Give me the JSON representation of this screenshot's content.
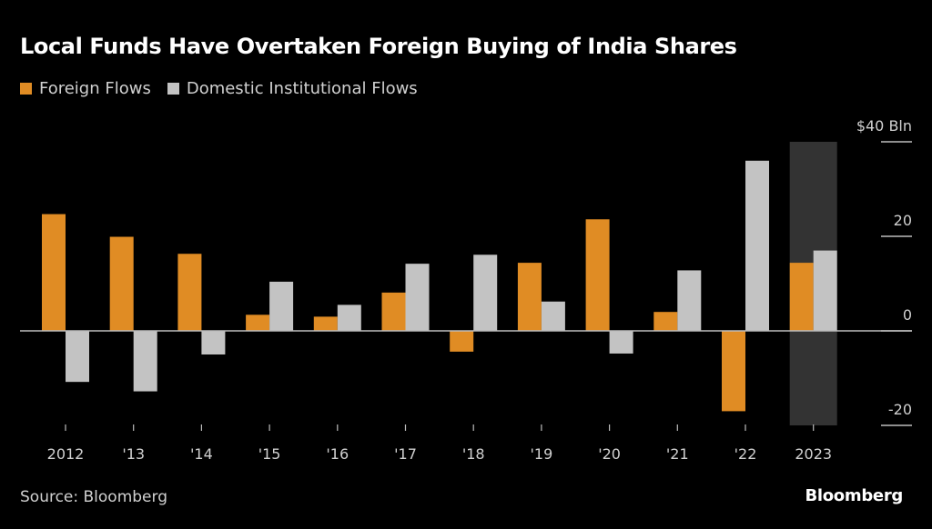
{
  "title": "Local Funds Have Overtaken Foreign Buying of India Shares",
  "source": "Source: Bloomberg",
  "brand": "Bloomberg",
  "colors": {
    "foreign": "#e08c24",
    "domestic": "#c3c3c3",
    "highlight": "#333333",
    "axis": "#bdbdbd",
    "background": "#000000"
  },
  "legend": [
    {
      "label": "Foreign Flows",
      "color": "#e08c24"
    },
    {
      "label": "Domestic Institutional Flows",
      "color": "#c3c3c3"
    }
  ],
  "chart_data": {
    "type": "bar",
    "title": "Local Funds Have Overtaken Foreign Buying of India Shares",
    "xlabel": "",
    "ylabel": "$ Bln",
    "categories": [
      "2012",
      "'13",
      "'14",
      "'15",
      "'16",
      "'17",
      "'18",
      "'19",
      "'20",
      "'21",
      "'22",
      "2023"
    ],
    "series": [
      {
        "name": "Foreign Flows",
        "values": [
          24.7,
          19.9,
          16.3,
          3.4,
          3.0,
          8.1,
          -4.4,
          14.4,
          23.6,
          4.0,
          -17.0,
          14.4
        ]
      },
      {
        "name": "Domestic Institutional Flows",
        "values": [
          -10.8,
          -12.8,
          -5.0,
          10.4,
          5.5,
          14.2,
          16.1,
          6.2,
          -4.8,
          12.8,
          36.0,
          17.0
        ]
      }
    ],
    "ylim": [
      -20,
      40
    ],
    "yticks": [
      {
        "value": 40,
        "label": "$40 Bln"
      },
      {
        "value": 20,
        "label": "20"
      },
      {
        "value": 0,
        "label": "0"
      },
      {
        "value": -20,
        "label": "-20"
      }
    ],
    "highlight_category": "2023",
    "grid": false,
    "legend_position": "top-left"
  }
}
